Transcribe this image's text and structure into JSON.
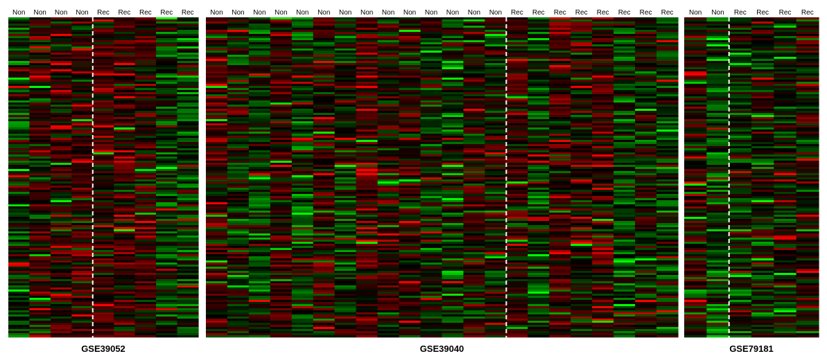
{
  "chart_data": [
    {
      "type": "heatmap",
      "dataset": "GSE39052",
      "column_labels": [
        "Non",
        "Non",
        "Non",
        "Non",
        "Rec",
        "Rec",
        "Rec",
        "Rec",
        "Rec"
      ],
      "non_count": 4,
      "rec_count": 5,
      "color_scale": {
        "low": "#00ff00",
        "mid": "#000000",
        "high": "#ff0000"
      }
    },
    {
      "type": "heatmap",
      "dataset": "GSE39040",
      "column_labels": [
        "Non",
        "Non",
        "Non",
        "Non",
        "Non",
        "Non",
        "Non",
        "Non",
        "Non",
        "Non",
        "Non",
        "Non",
        "Non",
        "Non",
        "Rec",
        "Rec",
        "Rec",
        "Rec",
        "Rec",
        "Rec",
        "Rec",
        "Rec"
      ],
      "non_count": 14,
      "rec_count": 8,
      "color_scale": {
        "low": "#00ff00",
        "mid": "#000000",
        "high": "#ff0000"
      }
    },
    {
      "type": "heatmap",
      "dataset": "GSE79181",
      "column_labels": [
        "Non",
        "Non",
        "Rec",
        "Rec",
        "Rec",
        "Rec"
      ],
      "non_count": 2,
      "rec_count": 4,
      "color_scale": {
        "low": "#00ff00",
        "mid": "#000000",
        "high": "#ff0000"
      }
    }
  ]
}
